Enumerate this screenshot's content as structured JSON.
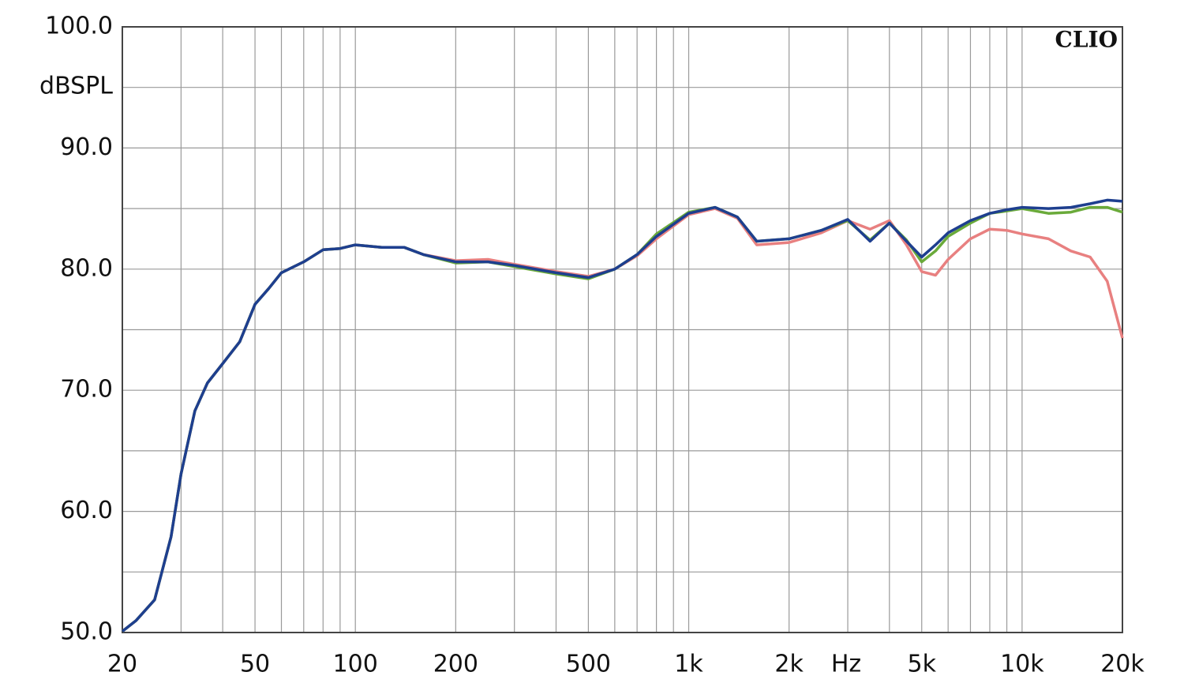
{
  "chart_data": {
    "type": "line",
    "y_label": "dBSPL",
    "x_label": "Hz",
    "brand": "CLIO",
    "log_x": true,
    "grid": true,
    "xlim": [
      20,
      20000
    ],
    "ylim": [
      50,
      100
    ],
    "xticks": [
      20,
      50,
      100,
      200,
      500,
      {
        "value": 1000,
        "label": "1k"
      },
      {
        "value": 2000,
        "label": "2k"
      },
      {
        "value": 5000,
        "label": "5k"
      },
      {
        "value": 10000,
        "label": "10k"
      },
      {
        "value": 20000,
        "label": "20k"
      }
    ],
    "x_minor_ticks": [
      30,
      40,
      60,
      70,
      80,
      90,
      300,
      400,
      600,
      700,
      800,
      900,
      3000,
      4000,
      6000,
      7000,
      8000,
      9000
    ],
    "yticks": [
      {
        "value": 50,
        "label": "50.0"
      },
      {
        "value": 60,
        "label": "60.0"
      },
      {
        "value": 70,
        "label": "70.0"
      },
      {
        "value": 80,
        "label": "80.0"
      },
      {
        "value": 90,
        "label": "90.0"
      },
      {
        "value": 100,
        "label": "100.0"
      }
    ],
    "y_minor_ticks": [
      55,
      65,
      75,
      85,
      95
    ],
    "x": [
      20,
      22,
      25,
      28,
      30,
      33,
      36,
      40,
      45,
      50,
      55,
      60,
      70,
      80,
      90,
      100,
      120,
      140,
      160,
      200,
      250,
      300,
      400,
      500,
      600,
      700,
      800,
      1000,
      1200,
      1400,
      1600,
      2000,
      2500,
      3000,
      3500,
      4000,
      4500,
      5000,
      5500,
      6000,
      7000,
      8000,
      9000,
      10000,
      12000,
      14000,
      16000,
      18000,
      20000
    ],
    "series": [
      {
        "color": "#e88080",
        "values": [
          50.1,
          51.0,
          52.7,
          57.9,
          63.1,
          68.3,
          70.6,
          72.2,
          74.0,
          77.1,
          78.4,
          79.7,
          80.6,
          81.6,
          81.7,
          82.0,
          81.8,
          81.8,
          81.2,
          80.7,
          80.8,
          80.4,
          79.8,
          79.4,
          80.0,
          81.1,
          82.5,
          84.5,
          85.0,
          84.2,
          82.0,
          82.2,
          83.0,
          84.0,
          83.3,
          84.0,
          82.0,
          79.8,
          79.5,
          80.8,
          82.5,
          83.3,
          83.2,
          82.9,
          82.5,
          81.5,
          81.0,
          79.0,
          74.3
        ]
      },
      {
        "color": "#6aaa3a",
        "values": [
          50.1,
          51.0,
          52.7,
          57.9,
          63.1,
          68.3,
          70.6,
          72.2,
          74.0,
          77.1,
          78.4,
          79.7,
          80.6,
          81.6,
          81.7,
          82.0,
          81.8,
          81.8,
          81.2,
          80.5,
          80.6,
          80.2,
          79.6,
          79.2,
          80.0,
          81.2,
          82.9,
          84.7,
          85.1,
          84.3,
          82.3,
          82.5,
          83.2,
          84.0,
          82.4,
          83.8,
          82.4,
          80.6,
          81.5,
          82.7,
          83.8,
          84.6,
          84.8,
          85.0,
          84.6,
          84.7,
          85.1,
          85.1,
          84.7
        ]
      },
      {
        "color": "#1e3f8f",
        "values": [
          50.1,
          51.0,
          52.7,
          57.9,
          63.1,
          68.3,
          70.6,
          72.2,
          74.0,
          77.1,
          78.4,
          79.7,
          80.6,
          81.6,
          81.7,
          82.0,
          81.8,
          81.8,
          81.2,
          80.6,
          80.6,
          80.3,
          79.7,
          79.3,
          80.0,
          81.2,
          82.7,
          84.6,
          85.1,
          84.3,
          82.3,
          82.5,
          83.2,
          84.1,
          82.3,
          83.8,
          82.3,
          81.0,
          82.0,
          83.0,
          84.0,
          84.6,
          84.9,
          85.1,
          85.0,
          85.1,
          85.4,
          85.7,
          85.6
        ]
      }
    ]
  }
}
